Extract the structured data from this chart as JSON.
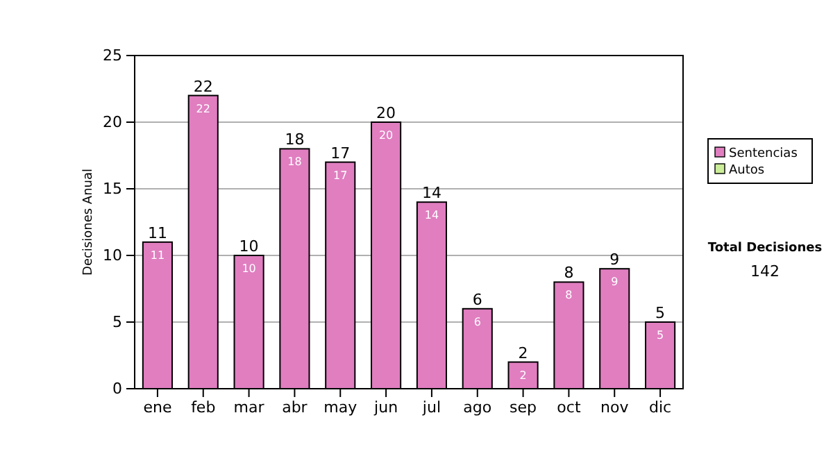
{
  "chart_data": {
    "type": "bar",
    "ylabel": "Decisiones Anual",
    "categories": [
      "ene",
      "feb",
      "mar",
      "abr",
      "may",
      "jun",
      "jul",
      "ago",
      "sep",
      "oct",
      "nov",
      "dic"
    ],
    "stacked": true,
    "series": [
      {
        "name": "Sentencias",
        "color": "#e07ec0",
        "values": [
          11,
          22,
          10,
          18,
          17,
          20,
          14,
          6,
          2,
          8,
          9,
          5
        ],
        "value_labels": [
          "11",
          "22",
          "10",
          "18",
          "17",
          "20",
          "14",
          "6",
          "2",
          "8",
          "9",
          "5"
        ]
      },
      {
        "name": "Autos",
        "color": "#ccee99",
        "values": [
          0,
          0,
          0,
          0,
          0,
          0,
          0,
          0,
          0,
          0,
          0,
          0
        ],
        "value_labels": [
          null,
          null,
          null,
          null,
          null,
          null,
          null,
          null,
          null,
          null,
          null,
          null
        ]
      }
    ],
    "totals": [
      "11",
      "22",
      "10",
      "18",
      "17",
      "20",
      "14",
      "6",
      "2",
      "8",
      "9",
      "5"
    ],
    "ylim": [
      0,
      25
    ],
    "yticks": [
      0,
      5,
      10,
      15,
      20,
      25
    ],
    "grid": "y",
    "legend": "right",
    "annotations": [
      "Total Decisiones",
      "142"
    ]
  }
}
